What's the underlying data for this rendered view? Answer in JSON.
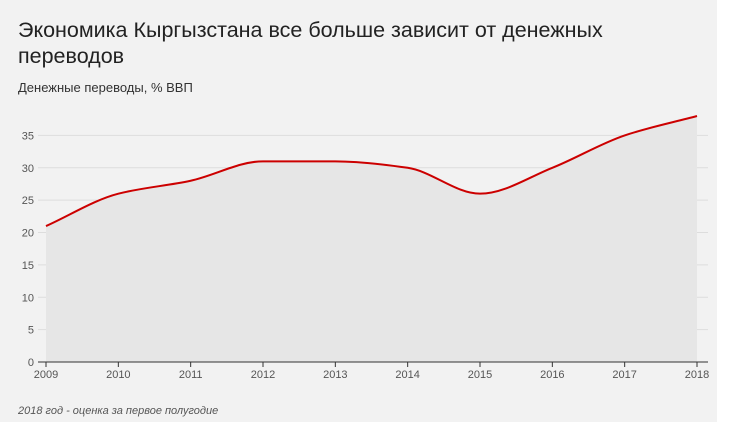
{
  "header": {
    "title": "Экономика Кыргызстана все больше зависит от денежных переводов",
    "subtitle": "Денежные переводы, % ВВП"
  },
  "footnote": "2018 год - оценка за первое полугодие",
  "colors": {
    "background": "#f2f2f2",
    "line": "#cc0000",
    "area": "#e6e6e6",
    "grid": "#dddddd"
  },
  "chart_data": {
    "type": "area",
    "title": "Экономика Кыргызстана все больше зависит от денежных переводов",
    "subtitle": "Денежные переводы, % ВВП",
    "xlabel": "",
    "ylabel": "",
    "x": [
      "2009",
      "2010",
      "2011",
      "2012",
      "2013",
      "2014",
      "2015",
      "2016",
      "2017",
      "2018"
    ],
    "series": [
      {
        "values": [
          21,
          26,
          28,
          31,
          31,
          30,
          26,
          30,
          35,
          38
        ]
      }
    ],
    "ylim": [
      0,
      38
    ],
    "yticks": [
      0,
      5,
      10,
      15,
      20,
      25,
      30,
      35
    ],
    "grid": true,
    "legend": "none",
    "annotations": [
      "2018 год - оценка за первое полугодие"
    ]
  }
}
